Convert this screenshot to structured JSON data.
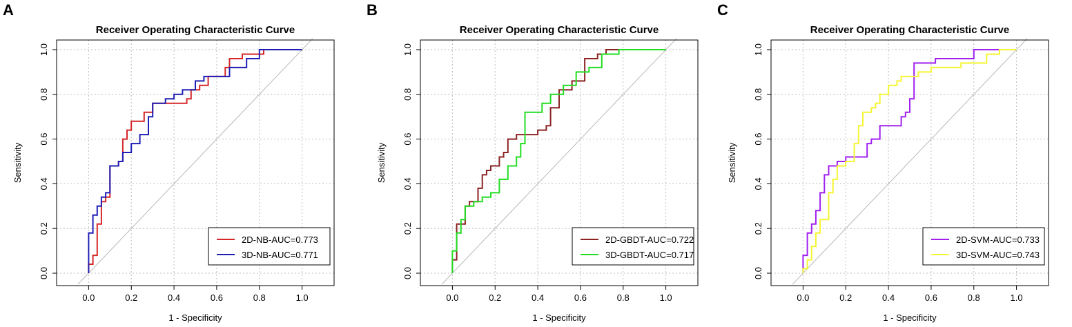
{
  "chart_data": [
    {
      "panel": "A",
      "type": "line",
      "title": "Receiver Operating Characteristic Curve",
      "xlabel": "1 - Specificity",
      "ylabel": "Sensitivity",
      "xlim": [
        -0.15,
        1.15
      ],
      "ylim": [
        0,
        1
      ],
      "xticks": [
        0.0,
        0.2,
        0.4,
        0.6,
        0.8,
        1.0
      ],
      "xtick_labels": [
        "0.0",
        "0.2",
        "0.4",
        "0.6",
        "0.8",
        "1.0"
      ],
      "yticks": [
        0.0,
        0.2,
        0.4,
        0.6,
        0.8,
        1.0
      ],
      "ytick_labels": [
        "0.0",
        "0.2",
        "0.4",
        "0.6",
        "0.8",
        "1.0"
      ],
      "grid": true,
      "legend_position": "bottom-right",
      "series": [
        {
          "name": "2D-NB-AUC=0.773",
          "color": "#d62728",
          "x": [
            0.0,
            0.0,
            0.02,
            0.02,
            0.04,
            0.04,
            0.06,
            0.06,
            0.08,
            0.08,
            0.1,
            0.1,
            0.14,
            0.14,
            0.16,
            0.16,
            0.18,
            0.18,
            0.2,
            0.2,
            0.26,
            0.26,
            0.3,
            0.3,
            0.34,
            0.34,
            0.46,
            0.46,
            0.48,
            0.48,
            0.52,
            0.52,
            0.56,
            0.56,
            0.64,
            0.64,
            0.66,
            0.66,
            0.72,
            0.72,
            0.78,
            0.78,
            0.82,
            0.82,
            1.0
          ],
          "y": [
            0.0,
            0.04,
            0.04,
            0.08,
            0.08,
            0.22,
            0.22,
            0.32,
            0.32,
            0.34,
            0.34,
            0.48,
            0.48,
            0.5,
            0.5,
            0.6,
            0.6,
            0.64,
            0.64,
            0.68,
            0.68,
            0.72,
            0.72,
            0.76,
            0.76,
            0.76,
            0.76,
            0.78,
            0.78,
            0.82,
            0.82,
            0.84,
            0.84,
            0.88,
            0.88,
            0.92,
            0.92,
            0.96,
            0.96,
            0.98,
            0.98,
            0.98,
            0.98,
            1.0,
            1.0
          ]
        },
        {
          "name": "3D-NB-AUC=0.771",
          "color": "#1f1fb4",
          "x": [
            0.0,
            0.0,
            0.02,
            0.02,
            0.04,
            0.04,
            0.06,
            0.06,
            0.08,
            0.08,
            0.1,
            0.1,
            0.14,
            0.14,
            0.16,
            0.16,
            0.2,
            0.2,
            0.24,
            0.24,
            0.28,
            0.28,
            0.3,
            0.3,
            0.36,
            0.36,
            0.4,
            0.4,
            0.44,
            0.44,
            0.5,
            0.5,
            0.54,
            0.54,
            0.66,
            0.66,
            0.74,
            0.74,
            0.8,
            0.8,
            1.0
          ],
          "y": [
            0.0,
            0.18,
            0.18,
            0.26,
            0.26,
            0.3,
            0.3,
            0.34,
            0.34,
            0.36,
            0.36,
            0.48,
            0.48,
            0.5,
            0.5,
            0.54,
            0.54,
            0.58,
            0.58,
            0.62,
            0.62,
            0.7,
            0.7,
            0.76,
            0.76,
            0.78,
            0.78,
            0.8,
            0.8,
            0.82,
            0.82,
            0.86,
            0.86,
            0.88,
            0.88,
            0.92,
            0.92,
            0.96,
            0.96,
            1.0,
            1.0
          ]
        }
      ]
    },
    {
      "panel": "B",
      "type": "line",
      "title": "Receiver Operating Characteristic Curve",
      "xlabel": "1 - Specificity",
      "ylabel": "Sensitivity",
      "xlim": [
        -0.15,
        1.15
      ],
      "ylim": [
        0,
        1
      ],
      "xticks": [
        0.0,
        0.2,
        0.4,
        0.6,
        0.8,
        1.0
      ],
      "xtick_labels": [
        "0.0",
        "0.2",
        "0.4",
        "0.6",
        "0.8",
        "1.0"
      ],
      "yticks": [
        0.0,
        0.2,
        0.4,
        0.6,
        0.8,
        1.0
      ],
      "ytick_labels": [
        "0.0",
        "0.2",
        "0.4",
        "0.6",
        "0.8",
        "1.0"
      ],
      "grid": true,
      "legend_position": "bottom-right",
      "series": [
        {
          "name": "2D-GBDT-AUC=0.722",
          "color": "#8b2323",
          "x": [
            0.0,
            0.0,
            0.02,
            0.02,
            0.06,
            0.06,
            0.08,
            0.08,
            0.12,
            0.12,
            0.14,
            0.14,
            0.16,
            0.16,
            0.18,
            0.18,
            0.22,
            0.22,
            0.24,
            0.24,
            0.26,
            0.26,
            0.3,
            0.3,
            0.4,
            0.4,
            0.44,
            0.44,
            0.46,
            0.46,
            0.5,
            0.5,
            0.56,
            0.56,
            0.62,
            0.62,
            0.68,
            0.68,
            0.72,
            0.72,
            1.0
          ],
          "y": [
            0.0,
            0.06,
            0.06,
            0.22,
            0.22,
            0.3,
            0.3,
            0.32,
            0.32,
            0.38,
            0.38,
            0.44,
            0.44,
            0.46,
            0.46,
            0.48,
            0.48,
            0.52,
            0.52,
            0.54,
            0.54,
            0.6,
            0.6,
            0.62,
            0.62,
            0.64,
            0.64,
            0.66,
            0.66,
            0.74,
            0.74,
            0.82,
            0.82,
            0.86,
            0.86,
            0.96,
            0.96,
            0.98,
            0.98,
            1.0,
            1.0
          ]
        },
        {
          "name": "3D-GBDT-AUC=0.717",
          "color": "#22dd22",
          "x": [
            0.0,
            0.0,
            0.02,
            0.02,
            0.04,
            0.04,
            0.06,
            0.06,
            0.1,
            0.1,
            0.14,
            0.14,
            0.18,
            0.18,
            0.22,
            0.22,
            0.26,
            0.26,
            0.3,
            0.3,
            0.32,
            0.32,
            0.34,
            0.34,
            0.42,
            0.42,
            0.46,
            0.46,
            0.52,
            0.52,
            0.58,
            0.58,
            0.64,
            0.64,
            0.7,
            0.7,
            0.78,
            0.78,
            1.0
          ],
          "y": [
            0.0,
            0.1,
            0.1,
            0.18,
            0.18,
            0.24,
            0.24,
            0.3,
            0.3,
            0.32,
            0.32,
            0.34,
            0.34,
            0.36,
            0.36,
            0.42,
            0.42,
            0.48,
            0.48,
            0.52,
            0.52,
            0.58,
            0.58,
            0.72,
            0.72,
            0.76,
            0.76,
            0.8,
            0.8,
            0.84,
            0.84,
            0.9,
            0.9,
            0.92,
            0.92,
            0.98,
            0.98,
            1.0,
            1.0
          ]
        }
      ]
    },
    {
      "panel": "C",
      "type": "line",
      "title": "Receiver Operating Characteristic Curve",
      "xlabel": "1 - Specificity",
      "ylabel": "Sensitivity",
      "xlim": [
        -0.15,
        1.15
      ],
      "ylim": [
        0,
        1
      ],
      "xticks": [
        0.0,
        0.2,
        0.4,
        0.6,
        0.8,
        1.0
      ],
      "xtick_labels": [
        "0.0",
        "0.2",
        "0.4",
        "0.6",
        "0.8",
        "1.0"
      ],
      "yticks": [
        0.0,
        0.2,
        0.4,
        0.6,
        0.8,
        1.0
      ],
      "ytick_labels": [
        "0.0",
        "0.2",
        "0.4",
        "0.6",
        "0.8",
        "1.0"
      ],
      "grid": true,
      "legend_position": "bottom-right",
      "series": [
        {
          "name": "2D-SVM-AUC=0.733",
          "color": "#a020f0",
          "x": [
            0.0,
            0.0,
            0.02,
            0.02,
            0.04,
            0.04,
            0.06,
            0.06,
            0.08,
            0.08,
            0.1,
            0.1,
            0.12,
            0.12,
            0.16,
            0.16,
            0.2,
            0.2,
            0.3,
            0.3,
            0.32,
            0.32,
            0.36,
            0.36,
            0.46,
            0.46,
            0.48,
            0.48,
            0.5,
            0.5,
            0.52,
            0.52,
            0.62,
            0.62,
            0.8,
            0.8,
            0.92
          ],
          "y": [
            0.0,
            0.08,
            0.08,
            0.18,
            0.18,
            0.22,
            0.22,
            0.28,
            0.28,
            0.36,
            0.36,
            0.44,
            0.44,
            0.48,
            0.48,
            0.5,
            0.5,
            0.52,
            0.52,
            0.58,
            0.58,
            0.6,
            0.6,
            0.66,
            0.66,
            0.7,
            0.7,
            0.72,
            0.72,
            0.78,
            0.78,
            0.94,
            0.94,
            0.96,
            0.96,
            1.0,
            1.0
          ]
        },
        {
          "name": "3D-SVM-AUC=0.743",
          "color": "#f5f533",
          "x": [
            0.0,
            0.0,
            0.02,
            0.02,
            0.04,
            0.04,
            0.06,
            0.06,
            0.08,
            0.08,
            0.12,
            0.12,
            0.14,
            0.14,
            0.16,
            0.16,
            0.2,
            0.2,
            0.24,
            0.24,
            0.26,
            0.26,
            0.28,
            0.28,
            0.32,
            0.32,
            0.34,
            0.34,
            0.36,
            0.36,
            0.4,
            0.4,
            0.44,
            0.44,
            0.46,
            0.46,
            0.54,
            0.54,
            0.6,
            0.6,
            0.74,
            0.74,
            0.86,
            0.86,
            0.92,
            0.92,
            1.0
          ],
          "y": [
            0.0,
            0.02,
            0.02,
            0.06,
            0.06,
            0.12,
            0.12,
            0.18,
            0.18,
            0.24,
            0.24,
            0.36,
            0.36,
            0.42,
            0.42,
            0.48,
            0.48,
            0.5,
            0.5,
            0.58,
            0.58,
            0.66,
            0.66,
            0.72,
            0.72,
            0.74,
            0.74,
            0.76,
            0.76,
            0.8,
            0.8,
            0.84,
            0.84,
            0.86,
            0.86,
            0.88,
            0.88,
            0.9,
            0.9,
            0.92,
            0.92,
            0.94,
            0.94,
            0.98,
            0.98,
            1.0,
            1.0
          ]
        }
      ]
    }
  ]
}
